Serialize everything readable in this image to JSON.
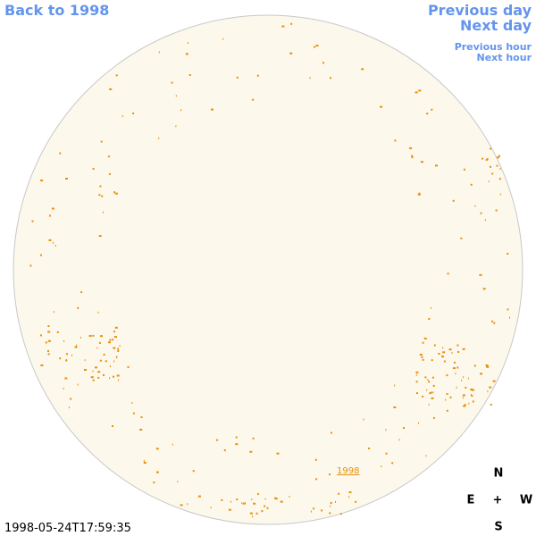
{
  "nav": {
    "back": "Back to 1998",
    "previous_day": "Previous day",
    "next_day": "Next day",
    "previous_hour": "Previous hour",
    "next_hour": "Next hour"
  },
  "disk": {
    "label": "1998"
  },
  "timestamp": "1998-05-24T17:59:35",
  "compass": {
    "north": "N",
    "east": "E",
    "center": "+",
    "west": "W",
    "south": "S"
  }
}
